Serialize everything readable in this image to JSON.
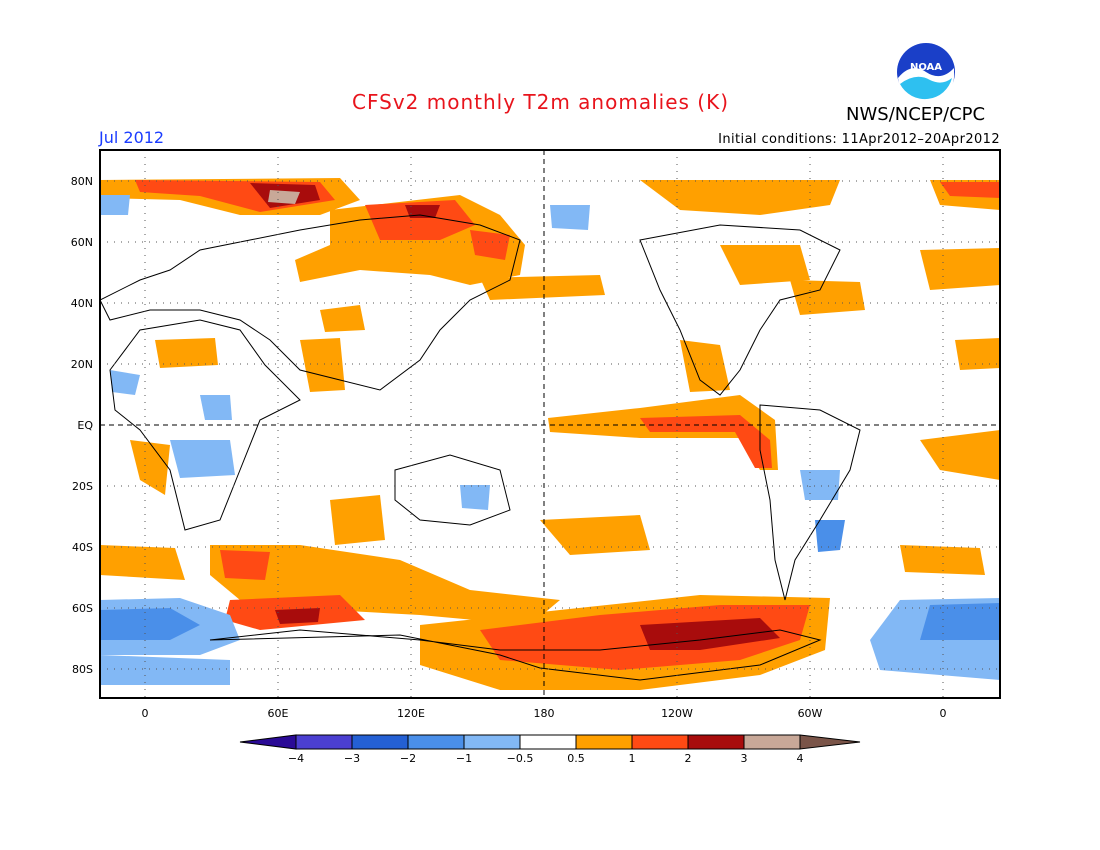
{
  "header": {
    "title": "CFSv2 monthly T2m anomalies (K)",
    "agency": "NWS/NCEP/CPC",
    "month": "Jul 2012",
    "initial_conditions": "Initial conditions: 11Apr2012–20Apr2012",
    "logo_text": "NOAA"
  },
  "map": {
    "lat_labels": [
      "80N",
      "60N",
      "40N",
      "20N",
      "EQ",
      "20S",
      "40S",
      "60S",
      "80S"
    ],
    "lon_labels": [
      "0",
      "60E",
      "120E",
      "180",
      "120W",
      "60W",
      "0"
    ]
  },
  "colorbar": {
    "labels": [
      "−4",
      "−3",
      "−2",
      "−1",
      "−0.5",
      "0.5",
      "1",
      "2",
      "3",
      "4"
    ],
    "colors": [
      "#2a0a96",
      "#4b3fd1",
      "#2460d4",
      "#4a8fe9",
      "#82b8f5",
      "#ffffff",
      "#ffa000",
      "#ff4a14",
      "#a80c0c",
      "#c8a898",
      "#7a5448"
    ]
  }
}
